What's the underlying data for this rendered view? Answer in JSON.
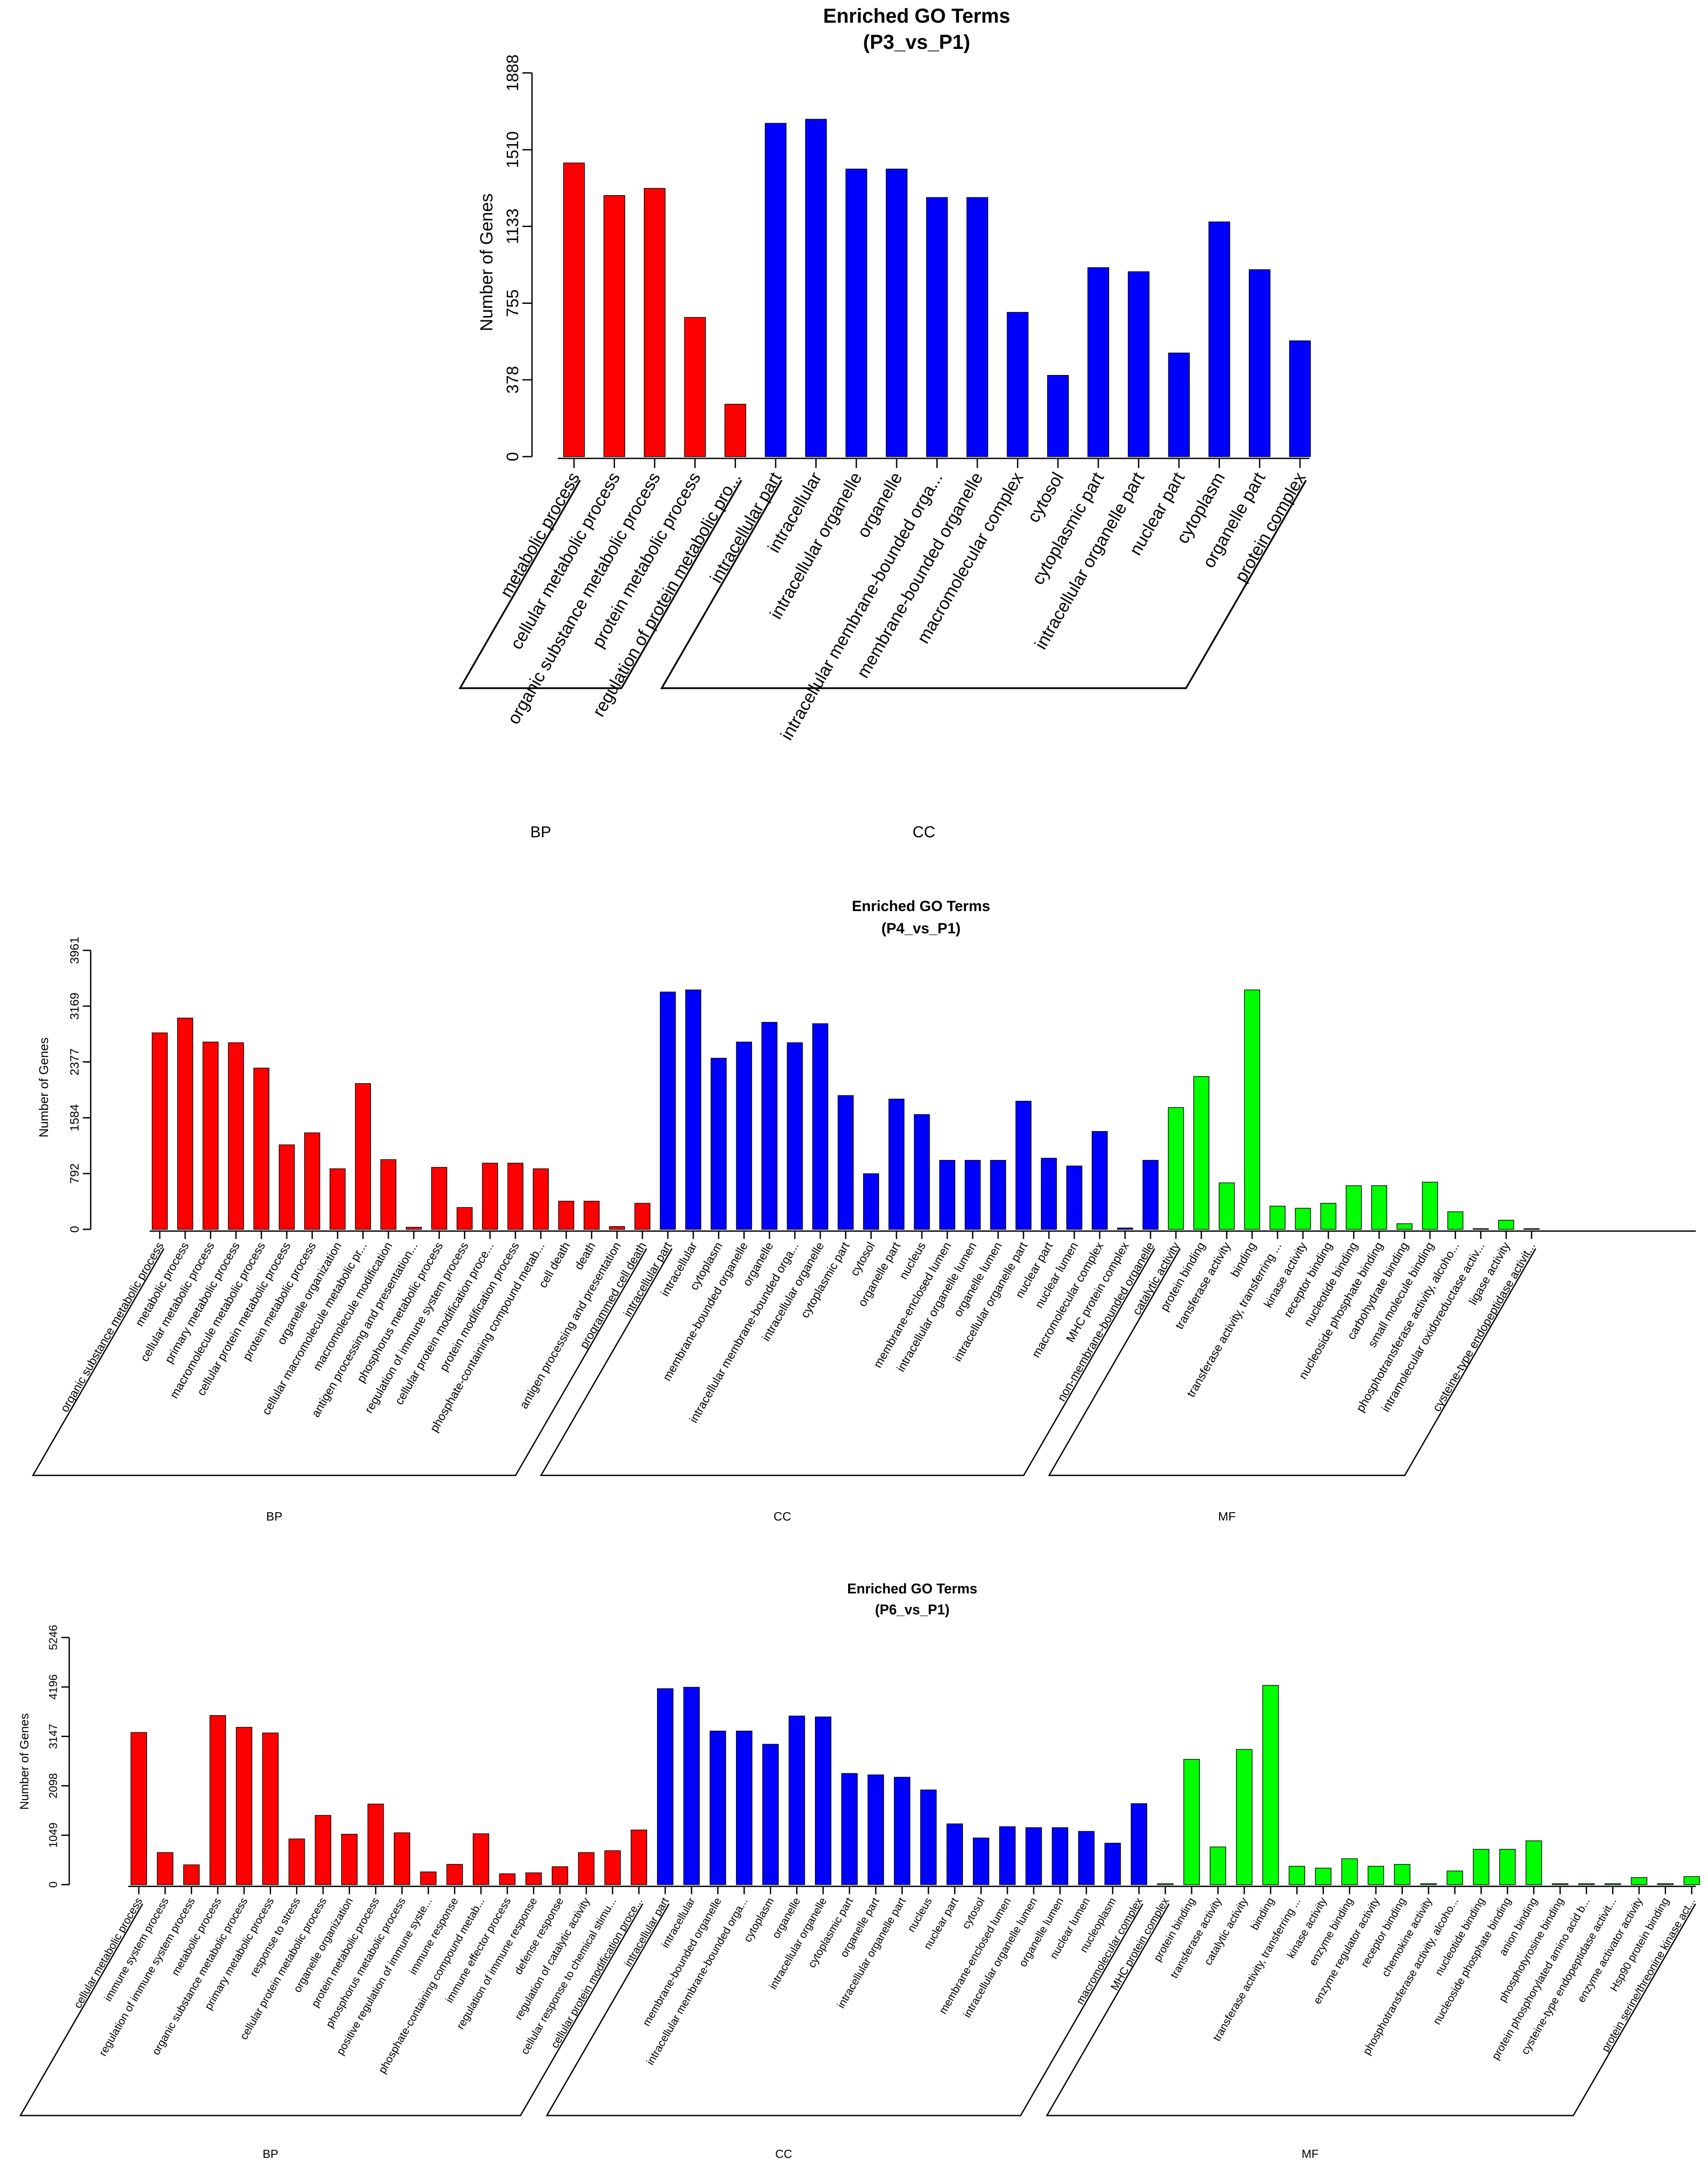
{
  "chart_data": [
    {
      "type": "bar",
      "title": "Enriched GO Terms",
      "subtitle": "(P3_vs_P1)",
      "ylabel": "Number of Genes",
      "xlabel": "",
      "ylim": [
        0,
        1888
      ],
      "yticks": [
        0,
        378,
        755,
        1133,
        1510,
        1888
      ],
      "grid": false,
      "groups": [
        {
          "name": "BP",
          "color": "#ff0000",
          "categories": [
            "metabolic process",
            "cellular metabolic process",
            "organic substance metabolic process",
            "protein metabolic process",
            "regulation of protein metabolic pro..."
          ],
          "values": [
            1445,
            1285,
            1320,
            685,
            258
          ]
        },
        {
          "name": "CC",
          "color": "#0000ff",
          "categories": [
            "intracellular part",
            "intracellular",
            "intracellular organelle",
            "organelle",
            "intracellular membrane-bounded orga...",
            "membrane-bounded organelle",
            "macromolecular complex",
            "cytosol",
            "cytoplasmic part",
            "intracellular organelle part",
            "nuclear part",
            "cytoplasm",
            "organelle part",
            "protein complex"
          ],
          "values": [
            1640,
            1660,
            1415,
            1415,
            1275,
            1275,
            710,
            400,
            930,
            910,
            510,
            1155,
            920,
            570
          ]
        }
      ]
    },
    {
      "type": "bar",
      "title": "Enriched GO Terms",
      "subtitle": "(P4_vs_P1)",
      "ylabel": "Number of Genes",
      "xlabel": "",
      "ylim": [
        0,
        3961
      ],
      "yticks": [
        0,
        792,
        1584,
        2377,
        3169,
        3961
      ],
      "grid": false,
      "groups": [
        {
          "name": "BP",
          "color": "#ff0000",
          "categories": [
            "organic substance metabolic process",
            "metabolic process",
            "cellular metabolic process",
            "primary metabolic process",
            "macromolecule metabolic process",
            "cellular protein metabolic process",
            "protein metabolic process",
            "organelle organization",
            "cellular macromolecule metabolic pr...",
            "macromolecule modification",
            "antigen processing and presentation...",
            "phosphorus metabolic process",
            "regulation of immune system process",
            "cellular protein modification proce...",
            "protein modification process",
            "phosphate-containing compound metab...",
            "cell death",
            "death",
            "antigen processing and presentation",
            "programmed cell death"
          ],
          "values": [
            2790,
            3000,
            2660,
            2650,
            2290,
            1200,
            1370,
            860,
            2070,
            990,
            30,
            880,
            310,
            940,
            940,
            860,
            400,
            400,
            40,
            370
          ]
        },
        {
          "name": "CC",
          "color": "#0000ff",
          "categories": [
            "intracellular part",
            "intracellular",
            "cytoplasm",
            "membrane-bounded organelle",
            "organelle",
            "intracellular membrane-bounded orga...",
            "intracellular organelle",
            "cytoplasmic part",
            "cytosol",
            "organelle part",
            "nucleus",
            "membrane-enclosed lumen",
            "intracellular organelle lumen",
            "organelle lumen",
            "intracellular organelle part",
            "nuclear part",
            "nuclear lumen",
            "macromolecular complex",
            "MHC protein complex",
            "non-membrane-bounded organelle"
          ],
          "values": [
            3370,
            3400,
            2430,
            2660,
            2940,
            2650,
            2920,
            1900,
            790,
            1850,
            1630,
            980,
            980,
            980,
            1820,
            1010,
            900,
            1390,
            20,
            980
          ]
        },
        {
          "name": "MF",
          "color": "#00ff00",
          "categories": [
            "catalytic activity",
            "protein binding",
            "transferase activity",
            "binding",
            "transferase activity, transferring ...",
            "kinase activity",
            "receptor binding",
            "nucleotide binding",
            "nucleoside phosphate binding",
            "carbohydrate binding",
            "small molecule binding",
            "phosphotransferase activity, alcoho...",
            "intramolecular oxidoreductase activ...",
            "ligase activity",
            "cysteine-type endopeptidase activit..."
          ],
          "values": [
            1730,
            2170,
            660,
            3400,
            330,
            300,
            370,
            620,
            620,
            80,
            670,
            250,
            10,
            130,
            10
          ]
        }
      ]
    },
    {
      "type": "bar",
      "title": "Enriched GO Terms",
      "subtitle": "(P6_vs_P1)",
      "ylabel": "Number of Genes",
      "xlabel": "",
      "ylim": [
        0,
        5246
      ],
      "yticks": [
        0,
        1049,
        2098,
        3147,
        4196,
        5246
      ],
      "grid": false,
      "groups": [
        {
          "name": "BP",
          "color": "#ff0000",
          "categories": [
            "cellular metabolic process",
            "immune system process",
            "regulation of immune system process",
            "metabolic process",
            "organic substance metabolic process",
            "primary metabolic process",
            "response to stress",
            "cellular protein metabolic process",
            "organelle organization",
            "protein metabolic process",
            "phosphorus metabolic process",
            "positive regulation of immune syste...",
            "immune response",
            "phosphate-containing compound metab...",
            "immune effector process",
            "regulation of immune response",
            "defense response",
            "regulation of catalytic activity",
            "cellular response to chemical stimu...",
            "cellular protein modification proce..."
          ],
          "values": [
            3230,
            680,
            420,
            3590,
            3340,
            3220,
            970,
            1470,
            1070,
            1710,
            1100,
            270,
            430,
            1080,
            230,
            250,
            380,
            680,
            720,
            1160
          ]
        },
        {
          "name": "CC",
          "color": "#0000ff",
          "categories": [
            "intracellular part",
            "intracellular",
            "membrane-bounded organelle",
            "intracellular membrane-bounded orga...",
            "cytoplasm",
            "organelle",
            "intracellular organelle",
            "cytoplasmic part",
            "organelle part",
            "intracellular organelle part",
            "nucleus",
            "nuclear part",
            "cytosol",
            "membrane-enclosed lumen",
            "intracellular organelle lumen",
            "organelle lumen",
            "nuclear lumen",
            "nucleoplasm",
            "macromolecular complex"
          ],
          "values": [
            4160,
            4190,
            3260,
            3260,
            2980,
            3580,
            3560,
            2360,
            2330,
            2280,
            2010,
            1290,
            990,
            1230,
            1210,
            1210,
            1130,
            880,
            1720
          ]
        },
        {
          "name": "MF",
          "color": "#00ff00",
          "categories": [
            "MHC protein complex",
            "protein binding",
            "transferase activity",
            "catalytic activity",
            "binding",
            "transferase activity, transferring ...",
            "kinase activity",
            "enzyme binding",
            "enzyme regulator activity",
            "receptor binding",
            "chemokine activity",
            "phosphotransferase activity, alcoho...",
            "nucleotide binding",
            "nucleoside phosphate binding",
            "anion binding",
            "phosphotyrosine binding",
            "protein phosphorylated amino acid b...",
            "cysteine-type endopeptidase activit...",
            "enzyme activator activity",
            "Hsp90 protein binding",
            "protein serine/threonine kinase act..."
          ],
          "values": [
            20,
            2660,
            800,
            2870,
            4230,
            390,
            350,
            550,
            390,
            430,
            20,
            290,
            750,
            750,
            930,
            20,
            20,
            20,
            150,
            20,
            170
          ]
        }
      ]
    }
  ]
}
